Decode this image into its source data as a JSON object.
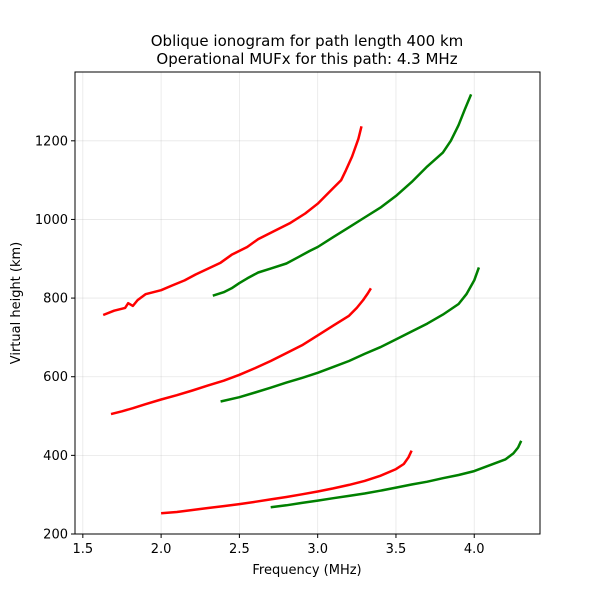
{
  "chart_data": {
    "type": "line",
    "title_lines": [
      "Oblique ionogram for path length 400 km",
      "Operational MUFx for this path: 4.3 MHz"
    ],
    "xlabel": "Frequency (MHz)",
    "ylabel": "Virtual height (km)",
    "xlim": [
      1.45,
      4.42
    ],
    "ylim": [
      200,
      1375
    ],
    "xticks": [
      1.5,
      2.0,
      2.5,
      3.0,
      3.5,
      4.0
    ],
    "xtick_labels": [
      "1.5",
      "2.0",
      "2.5",
      "3.0",
      "3.5",
      "4.0"
    ],
    "yticks": [
      200,
      400,
      600,
      800,
      1000,
      1200
    ],
    "ytick_labels": [
      "200",
      "400",
      "600",
      "800",
      "1000",
      "1200"
    ],
    "grid": true,
    "legend": "none",
    "series": [
      {
        "color": "#ff0000",
        "x": [
          1.63,
          1.7,
          1.77,
          1.79,
          1.82,
          1.85,
          1.9,
          2.0,
          2.07,
          2.15,
          2.22,
          2.3,
          2.38,
          2.45,
          2.5,
          2.55,
          2.62,
          2.72,
          2.82,
          2.92,
          3.0,
          3.05,
          3.1,
          3.15,
          3.18,
          3.22,
          3.26,
          3.28
        ],
        "y": [
          757,
          768,
          775,
          787,
          780,
          795,
          810,
          820,
          832,
          845,
          860,
          875,
          890,
          910,
          920,
          930,
          950,
          970,
          990,
          1015,
          1040,
          1060,
          1080,
          1100,
          1125,
          1160,
          1205,
          1237
        ]
      },
      {
        "color": "#008000",
        "x": [
          2.33,
          2.4,
          2.45,
          2.5,
          2.55,
          2.62,
          2.7,
          2.8,
          2.88,
          2.95,
          3.0,
          3.1,
          3.2,
          3.3,
          3.4,
          3.5,
          3.6,
          3.7,
          3.8,
          3.85,
          3.9,
          3.94,
          3.98
        ],
        "y": [
          806,
          815,
          825,
          838,
          850,
          865,
          875,
          888,
          905,
          920,
          930,
          955,
          980,
          1005,
          1030,
          1060,
          1095,
          1135,
          1170,
          1200,
          1240,
          1280,
          1318
        ]
      },
      {
        "color": "#ff0000",
        "x": [
          1.68,
          1.75,
          1.82,
          1.9,
          2.0,
          2.1,
          2.2,
          2.3,
          2.4,
          2.5,
          2.6,
          2.7,
          2.8,
          2.9,
          3.0,
          3.1,
          3.2,
          3.25,
          3.29,
          3.32,
          3.34
        ],
        "y": [
          505,
          512,
          520,
          530,
          542,
          553,
          565,
          578,
          590,
          605,
          622,
          640,
          660,
          680,
          705,
          730,
          755,
          775,
          795,
          812,
          825
        ]
      },
      {
        "color": "#008000",
        "x": [
          2.38,
          2.5,
          2.6,
          2.7,
          2.8,
          2.9,
          3.0,
          3.1,
          3.2,
          3.3,
          3.4,
          3.5,
          3.6,
          3.7,
          3.8,
          3.9,
          3.95,
          4.0,
          4.03
        ],
        "y": [
          537,
          548,
          560,
          572,
          585,
          597,
          610,
          625,
          640,
          658,
          675,
          695,
          715,
          735,
          758,
          785,
          810,
          845,
          878
        ]
      },
      {
        "color": "#ff0000",
        "x": [
          2.0,
          2.1,
          2.2,
          2.3,
          2.4,
          2.5,
          2.6,
          2.7,
          2.8,
          2.9,
          3.0,
          3.1,
          3.2,
          3.3,
          3.4,
          3.5,
          3.55,
          3.58,
          3.6
        ],
        "y": [
          253,
          256,
          261,
          266,
          271,
          276,
          282,
          288,
          294,
          301,
          308,
          316,
          325,
          335,
          348,
          365,
          378,
          395,
          412
        ]
      },
      {
        "color": "#008000",
        "x": [
          2.7,
          2.8,
          2.9,
          3.0,
          3.1,
          3.2,
          3.3,
          3.4,
          3.5,
          3.6,
          3.7,
          3.8,
          3.9,
          4.0,
          4.1,
          4.2,
          4.25,
          4.28,
          4.3
        ],
        "y": [
          268,
          273,
          279,
          285,
          291,
          297,
          303,
          310,
          318,
          326,
          333,
          342,
          350,
          360,
          375,
          390,
          405,
          420,
          437
        ]
      }
    ]
  }
}
